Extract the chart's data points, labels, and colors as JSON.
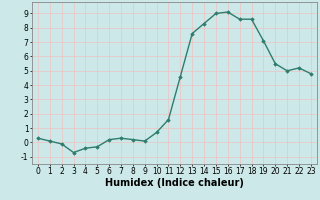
{
  "x": [
    0,
    1,
    2,
    3,
    4,
    5,
    6,
    7,
    8,
    9,
    10,
    11,
    12,
    13,
    14,
    15,
    16,
    17,
    18,
    19,
    20,
    21,
    22,
    23
  ],
  "y": [
    0.3,
    0.1,
    -0.1,
    -0.7,
    -0.4,
    -0.3,
    0.2,
    0.3,
    0.2,
    0.1,
    0.7,
    1.6,
    4.6,
    7.6,
    8.3,
    9.0,
    9.1,
    8.6,
    8.6,
    7.1,
    5.5,
    5.0,
    5.2,
    4.8
  ],
  "line_color": "#2e7d6e",
  "marker": "D",
  "marker_size": 1.8,
  "line_width": 1.0,
  "xlabel": "Humidex (Indice chaleur)",
  "ylim": [
    -1.5,
    9.8
  ],
  "xlim": [
    -0.5,
    23.5
  ],
  "yticks": [
    -1,
    0,
    1,
    2,
    3,
    4,
    5,
    6,
    7,
    8,
    9
  ],
  "xticks": [
    0,
    1,
    2,
    3,
    4,
    5,
    6,
    7,
    8,
    9,
    10,
    11,
    12,
    13,
    14,
    15,
    16,
    17,
    18,
    19,
    20,
    21,
    22,
    23
  ],
  "xtick_labels": [
    "0",
    "1",
    "2",
    "3",
    "4",
    "5",
    "6",
    "7",
    "8",
    "9",
    "10",
    "11",
    "12",
    "13",
    "14",
    "15",
    "16",
    "17",
    "18",
    "19",
    "20",
    "21",
    "22",
    "23"
  ],
  "background_color": "#cce8e8",
  "grid_color": "#e8c8c8",
  "tick_fontsize": 5.5,
  "xlabel_fontsize": 7.0,
  "xlabel_bold": true
}
